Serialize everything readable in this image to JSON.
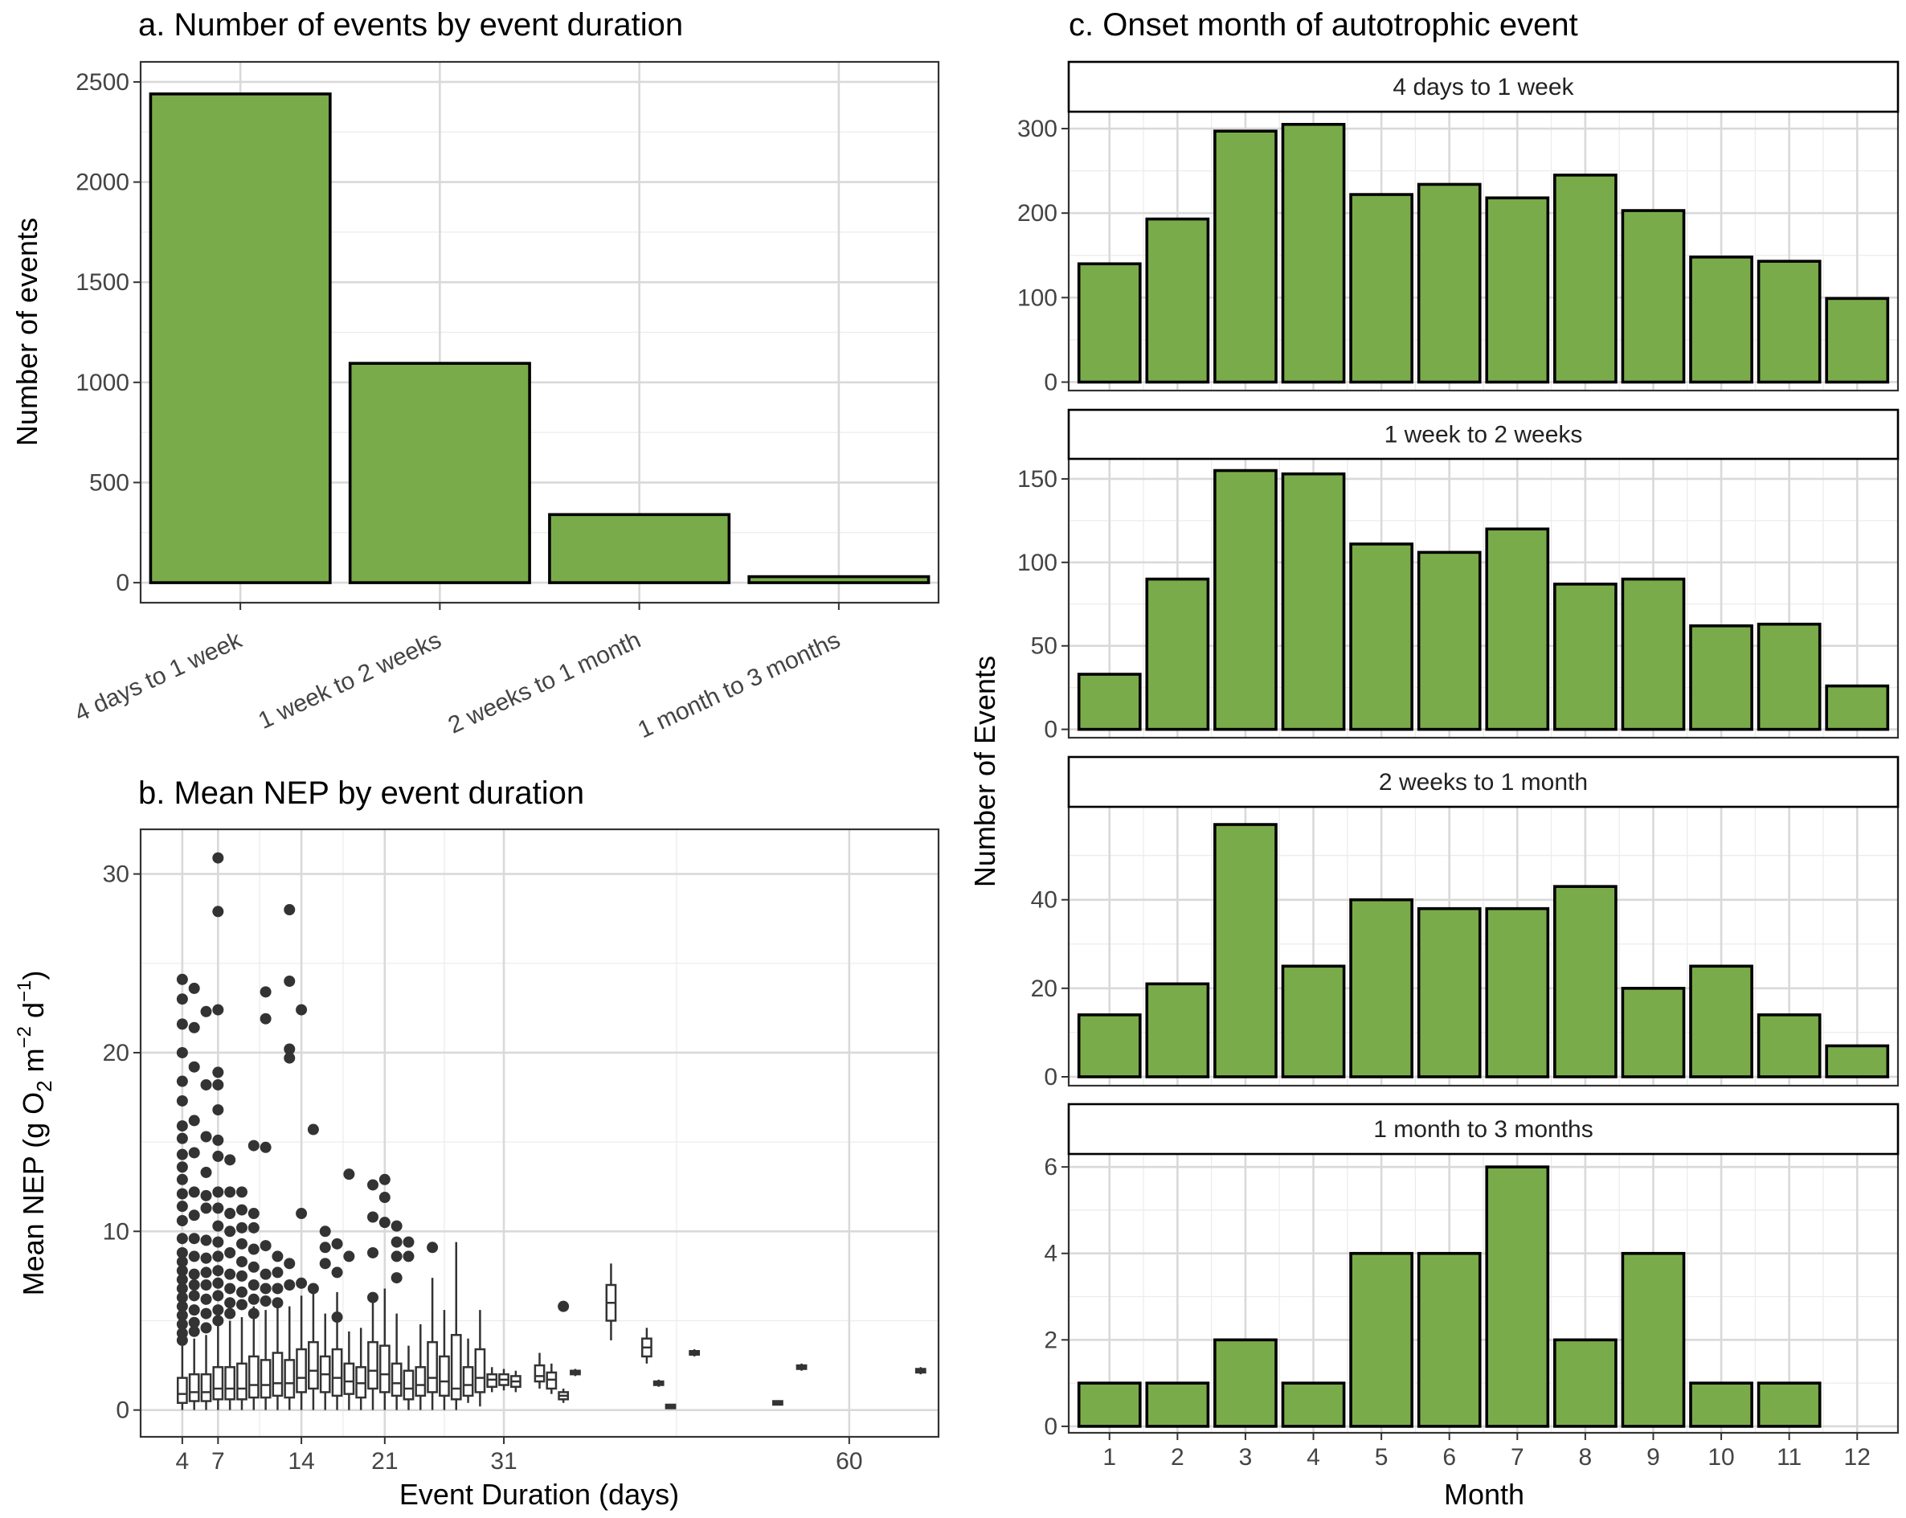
{
  "chart_data": [
    {
      "id": "a",
      "type": "bar",
      "title": "a. Number of events by event duration",
      "xlabel": "",
      "ylabel": "Number of events",
      "categories": [
        "4 days to 1 week",
        "1 week to 2 weeks",
        "2 weeks to 1 month",
        "1 month to 3 months"
      ],
      "values": [
        2440,
        1095,
        340,
        30
      ],
      "ylim": [
        -100,
        2600
      ],
      "yticks": [
        0,
        500,
        1000,
        1500,
        2000,
        2500
      ],
      "ytick_labels": [
        "0",
        "500",
        "1000",
        "1500",
        "2000",
        "2500"
      ],
      "grid": true,
      "bar_color": "#7aab4a"
    },
    {
      "id": "b",
      "type": "box",
      "title": "b. Mean NEP by event duration",
      "xlabel": "Event Duration (days)",
      "ylabel": "Mean NEP (g O₂ m⁻² d⁻¹)",
      "ylabel_parts": [
        "Mean NEP (g  O",
        "2",
        " m",
        "−2",
        " d",
        "−1",
        ")"
      ],
      "xlim": [
        0.5,
        67.5
      ],
      "ylim": [
        -1.5,
        32.5
      ],
      "xticks": [
        4,
        7,
        14,
        21,
        31,
        60
      ],
      "xtick_labels": [
        "4",
        "7",
        "14",
        "21",
        "31",
        "60"
      ],
      "yticks": [
        0,
        10,
        20,
        30
      ],
      "ytick_labels": [
        "0",
        "10",
        "20",
        "30"
      ],
      "grid": true,
      "boxes": [
        {
          "x": 4,
          "q1": 0.4,
          "median": 0.9,
          "q3": 1.8,
          "wlo": 0.0,
          "whi": 3.6
        },
        {
          "x": 5,
          "q1": 0.5,
          "median": 1.0,
          "q3": 2.0,
          "wlo": 0.0,
          "whi": 4.0
        },
        {
          "x": 6,
          "q1": 0.5,
          "median": 1.0,
          "q3": 2.0,
          "wlo": 0.0,
          "whi": 4.2
        },
        {
          "x": 7,
          "q1": 0.6,
          "median": 1.2,
          "q3": 2.4,
          "wlo": 0.0,
          "whi": 4.8
        },
        {
          "x": 8,
          "q1": 0.6,
          "median": 1.2,
          "q3": 2.4,
          "wlo": 0.0,
          "whi": 5.0
        },
        {
          "x": 9,
          "q1": 0.6,
          "median": 1.2,
          "q3": 2.6,
          "wlo": 0.0,
          "whi": 5.2
        },
        {
          "x": 10,
          "q1": 0.7,
          "median": 1.4,
          "q3": 3.0,
          "wlo": 0.0,
          "whi": 5.8
        },
        {
          "x": 11,
          "q1": 0.7,
          "median": 1.4,
          "q3": 2.8,
          "wlo": 0.0,
          "whi": 5.6
        },
        {
          "x": 12,
          "q1": 0.8,
          "median": 1.5,
          "q3": 3.2,
          "wlo": 0.0,
          "whi": 6.2
        },
        {
          "x": 13,
          "q1": 0.7,
          "median": 1.5,
          "q3": 2.8,
          "wlo": 0.0,
          "whi": 5.8
        },
        {
          "x": 14,
          "q1": 1.0,
          "median": 1.8,
          "q3": 3.4,
          "wlo": 0.0,
          "whi": 6.4
        },
        {
          "x": 15,
          "q1": 1.2,
          "median": 2.2,
          "q3": 3.8,
          "wlo": 0.0,
          "whi": 7.0
        },
        {
          "x": 16,
          "q1": 1.0,
          "median": 2.0,
          "q3": 3.0,
          "wlo": 0.0,
          "whi": 5.4
        },
        {
          "x": 17,
          "q1": 0.8,
          "median": 1.8,
          "q3": 3.4,
          "wlo": 0.0,
          "whi": 6.6
        },
        {
          "x": 18,
          "q1": 0.9,
          "median": 1.6,
          "q3": 2.6,
          "wlo": 0.0,
          "whi": 4.4
        },
        {
          "x": 19,
          "q1": 0.7,
          "median": 1.5,
          "q3": 2.4,
          "wlo": 0.0,
          "whi": 4.6
        },
        {
          "x": 20,
          "q1": 1.2,
          "median": 2.2,
          "q3": 3.8,
          "wlo": 0.0,
          "whi": 6.2
        },
        {
          "x": 21,
          "q1": 1.0,
          "median": 2.0,
          "q3": 3.6,
          "wlo": 0.0,
          "whi": 6.8
        },
        {
          "x": 22,
          "q1": 0.8,
          "median": 1.5,
          "q3": 2.6,
          "wlo": 0.0,
          "whi": 5.4
        },
        {
          "x": 23,
          "q1": 0.6,
          "median": 1.2,
          "q3": 2.2,
          "wlo": 0.0,
          "whi": 3.6
        },
        {
          "x": 24,
          "q1": 0.8,
          "median": 1.4,
          "q3": 2.4,
          "wlo": 0.0,
          "whi": 4.8
        },
        {
          "x": 25,
          "q1": 1.0,
          "median": 1.8,
          "q3": 3.8,
          "wlo": 0.0,
          "whi": 7.4
        },
        {
          "x": 26,
          "q1": 0.8,
          "median": 1.6,
          "q3": 3.0,
          "wlo": 0.0,
          "whi": 5.6
        },
        {
          "x": 27,
          "q1": 0.6,
          "median": 1.2,
          "q3": 4.2,
          "wlo": 0.0,
          "whi": 9.4
        },
        {
          "x": 28,
          "q1": 0.8,
          "median": 1.4,
          "q3": 2.4,
          "wlo": 0.4,
          "whi": 4.0
        },
        {
          "x": 29,
          "q1": 1.0,
          "median": 1.8,
          "q3": 3.4,
          "wlo": 0.2,
          "whi": 5.6
        },
        {
          "x": 30,
          "q1": 1.3,
          "median": 1.7,
          "q3": 2.0,
          "wlo": 1.0,
          "whi": 2.4
        },
        {
          "x": 31,
          "q1": 1.4,
          "median": 1.7,
          "q3": 2.0,
          "wlo": 1.1,
          "whi": 2.3
        },
        {
          "x": 32,
          "q1": 1.3,
          "median": 1.6,
          "q3": 1.9,
          "wlo": 1.0,
          "whi": 2.2
        },
        {
          "x": 34,
          "q1": 1.6,
          "median": 1.9,
          "q3": 2.5,
          "wlo": 1.2,
          "whi": 3.2
        },
        {
          "x": 35,
          "q1": 1.2,
          "median": 1.7,
          "q3": 2.1,
          "wlo": 0.9,
          "whi": 2.6
        },
        {
          "x": 36,
          "q1": 0.6,
          "median": 0.8,
          "q3": 1.0,
          "wlo": 0.4,
          "whi": 1.2
        },
        {
          "x": 37,
          "q1": 2.0,
          "median": 2.1,
          "q3": 2.2,
          "wlo": 1.9,
          "whi": 2.3
        },
        {
          "x": 40,
          "q1": 5.0,
          "median": 6.0,
          "q3": 7.0,
          "wlo": 3.9,
          "whi": 8.2
        },
        {
          "x": 43,
          "q1": 3.0,
          "median": 3.5,
          "q3": 4.0,
          "wlo": 2.6,
          "whi": 4.6
        },
        {
          "x": 44,
          "q1": 1.4,
          "median": 1.5,
          "q3": 1.6,
          "wlo": 1.3,
          "whi": 1.7
        },
        {
          "x": 45,
          "q1": 0.1,
          "median": 0.2,
          "q3": 0.3,
          "wlo": 0.1,
          "whi": 0.3
        },
        {
          "x": 47,
          "q1": 3.1,
          "median": 3.2,
          "q3": 3.3,
          "wlo": 3.0,
          "whi": 3.4
        },
        {
          "x": 54,
          "q1": 0.3,
          "median": 0.4,
          "q3": 0.5,
          "wlo": 0.3,
          "whi": 0.5
        },
        {
          "x": 56,
          "q1": 2.3,
          "median": 2.4,
          "q3": 2.5,
          "wlo": 2.2,
          "whi": 2.6
        },
        {
          "x": 66,
          "q1": 2.1,
          "median": 2.2,
          "q3": 2.3,
          "wlo": 2.0,
          "whi": 2.4
        }
      ],
      "outliers": [
        [
          4,
          24.1
        ],
        [
          4,
          23.0
        ],
        [
          4,
          21.6
        ],
        [
          4,
          20.0
        ],
        [
          4,
          18.4
        ],
        [
          4,
          17.3
        ],
        [
          4,
          15.9
        ],
        [
          4,
          15.2
        ],
        [
          4,
          14.3
        ],
        [
          4,
          13.6
        ],
        [
          4,
          12.9
        ],
        [
          4,
          12.1
        ],
        [
          4,
          11.4
        ],
        [
          4,
          10.6
        ],
        [
          4,
          9.6
        ],
        [
          4,
          8.8
        ],
        [
          4,
          8.3
        ],
        [
          4,
          7.8
        ],
        [
          4,
          7.3
        ],
        [
          4,
          6.8
        ],
        [
          4,
          6.3
        ],
        [
          4,
          5.8
        ],
        [
          4,
          5.3
        ],
        [
          4,
          4.8
        ],
        [
          4,
          4.3
        ],
        [
          4,
          3.9
        ],
        [
          5,
          23.6
        ],
        [
          5,
          21.4
        ],
        [
          5,
          19.2
        ],
        [
          5,
          16.2
        ],
        [
          5,
          14.4
        ],
        [
          5,
          12.2
        ],
        [
          5,
          10.9
        ],
        [
          5,
          9.6
        ],
        [
          5,
          8.6
        ],
        [
          5,
          7.6
        ],
        [
          5,
          7.0
        ],
        [
          5,
          6.4
        ],
        [
          5,
          5.6
        ],
        [
          5,
          4.9
        ],
        [
          5,
          4.4
        ],
        [
          6,
          22.3
        ],
        [
          6,
          18.2
        ],
        [
          6,
          15.3
        ],
        [
          6,
          13.3
        ],
        [
          6,
          12.0
        ],
        [
          6,
          11.3
        ],
        [
          6,
          9.5
        ],
        [
          6,
          8.5
        ],
        [
          6,
          7.7
        ],
        [
          6,
          7.0
        ],
        [
          6,
          6.2
        ],
        [
          6,
          5.4
        ],
        [
          6,
          4.6
        ],
        [
          7,
          30.9
        ],
        [
          7,
          27.9
        ],
        [
          7,
          22.4
        ],
        [
          7,
          18.9
        ],
        [
          7,
          18.2
        ],
        [
          7,
          16.8
        ],
        [
          7,
          15.1
        ],
        [
          7,
          14.2
        ],
        [
          7,
          12.2
        ],
        [
          7,
          11.3
        ],
        [
          7,
          10.3
        ],
        [
          7,
          9.4
        ],
        [
          7,
          8.6
        ],
        [
          7,
          7.8
        ],
        [
          7,
          7.1
        ],
        [
          7,
          6.4
        ],
        [
          7,
          5.6
        ],
        [
          7,
          5.0
        ],
        [
          8,
          14.0
        ],
        [
          8,
          12.2
        ],
        [
          8,
          11.0
        ],
        [
          8,
          10.0
        ],
        [
          8,
          8.8
        ],
        [
          8,
          7.6
        ],
        [
          8,
          6.8
        ],
        [
          8,
          6.0
        ],
        [
          8,
          5.4
        ],
        [
          9,
          12.2
        ],
        [
          9,
          11.2
        ],
        [
          9,
          10.2
        ],
        [
          9,
          9.3
        ],
        [
          9,
          8.3
        ],
        [
          9,
          7.5
        ],
        [
          9,
          6.6
        ],
        [
          9,
          5.9
        ],
        [
          10,
          14.8
        ],
        [
          10,
          11.0
        ],
        [
          10,
          10.2
        ],
        [
          10,
          9.0
        ],
        [
          10,
          8.0
        ],
        [
          10,
          7.0
        ],
        [
          10,
          6.2
        ],
        [
          10,
          5.4
        ],
        [
          11,
          23.4
        ],
        [
          11,
          21.9
        ],
        [
          11,
          14.7
        ],
        [
          11,
          9.2
        ],
        [
          11,
          7.6
        ],
        [
          11,
          6.8
        ],
        [
          11,
          6.1
        ],
        [
          12,
          8.6
        ],
        [
          12,
          7.7
        ],
        [
          12,
          6.8
        ],
        [
          12,
          6.0
        ],
        [
          13,
          28.0
        ],
        [
          13,
          24.0
        ],
        [
          13,
          20.2
        ],
        [
          13,
          19.7
        ],
        [
          13,
          8.2
        ],
        [
          13,
          7.0
        ],
        [
          14,
          22.4
        ],
        [
          14,
          11.0
        ],
        [
          14,
          7.1
        ],
        [
          15,
          15.7
        ],
        [
          15,
          6.8
        ],
        [
          16,
          10.0
        ],
        [
          16,
          9.1
        ],
        [
          16,
          8.2
        ],
        [
          17,
          9.3
        ],
        [
          17,
          7.7
        ],
        [
          17,
          5.2
        ],
        [
          18,
          13.2
        ],
        [
          18,
          8.6
        ],
        [
          20,
          12.6
        ],
        [
          20,
          10.8
        ],
        [
          20,
          8.8
        ],
        [
          20,
          6.3
        ],
        [
          21,
          12.9
        ],
        [
          21,
          11.9
        ],
        [
          21,
          10.5
        ],
        [
          22,
          10.3
        ],
        [
          22,
          9.4
        ],
        [
          22,
          8.6
        ],
        [
          22,
          7.4
        ],
        [
          23,
          9.4
        ],
        [
          23,
          8.6
        ],
        [
          25,
          9.1
        ],
        [
          36,
          5.8
        ]
      ]
    },
    {
      "id": "c",
      "type": "bar",
      "title": "c. Onset month of autotrophic event",
      "xlabel": "Month",
      "ylabel": "Number of Events",
      "categories": [
        "1",
        "2",
        "3",
        "4",
        "5",
        "6",
        "7",
        "8",
        "9",
        "10",
        "11",
        "12"
      ],
      "bar_color": "#7aab4a",
      "grid": true,
      "facets": [
        {
          "strip": "4 days to 1 week",
          "values": [
            140,
            193,
            297,
            305,
            222,
            234,
            218,
            245,
            203,
            148,
            143,
            99
          ],
          "ylim": [
            -10,
            320
          ],
          "yticks": [
            0,
            100,
            200,
            300
          ],
          "ytick_labels": [
            "0",
            "100",
            "200",
            "300"
          ]
        },
        {
          "strip": "1 week to 2 weeks",
          "values": [
            33,
            90,
            155,
            153,
            111,
            106,
            120,
            87,
            90,
            62,
            63,
            26
          ],
          "ylim": [
            -5,
            162
          ],
          "yticks": [
            0,
            50,
            100,
            150
          ],
          "ytick_labels": [
            "0",
            "50",
            "100",
            "150"
          ]
        },
        {
          "strip": "2 weeks to 1 month",
          "values": [
            14,
            21,
            57,
            25,
            40,
            38,
            38,
            43,
            20,
            25,
            14,
            7
          ],
          "ylim": [
            -2,
            61
          ],
          "yticks": [
            0,
            20,
            40
          ],
          "ytick_labels": [
            "0",
            "20",
            "40"
          ]
        },
        {
          "strip": "1 month to 3 months",
          "values": [
            1,
            1,
            2,
            1,
            4,
            4,
            6,
            2,
            4,
            1,
            1,
            0
          ],
          "ylim": [
            -0.15,
            6.3
          ],
          "yticks": [
            0,
            2,
            4,
            6
          ],
          "ytick_labels": [
            "0",
            "2",
            "4",
            "6"
          ]
        }
      ]
    }
  ]
}
